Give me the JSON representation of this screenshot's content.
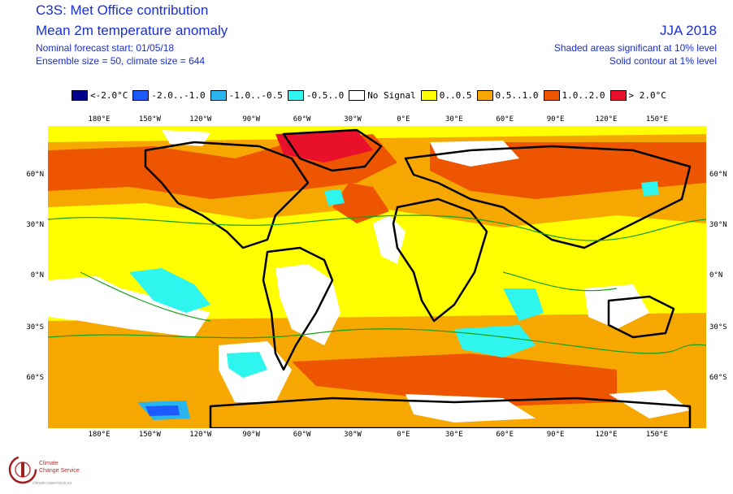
{
  "header": {
    "title": "C3S: Met Office contribution",
    "subtitle": "Mean 2m temperature anomaly",
    "forecast_start": "Nominal forecast start: 01/05/18",
    "ensemble": "Ensemble size = 50, climate size = 644",
    "season": "JJA 2018",
    "sig_note_1": "Shaded areas significant at 10% level",
    "sig_note_2": "Solid contour at 1% level"
  },
  "legend": [
    {
      "label": "<-2.0°C",
      "color": "#00008b"
    },
    {
      "label": "-2.0..-1.0",
      "color": "#1e5bff"
    },
    {
      "label": "-1.0..-0.5",
      "color": "#29b6ee"
    },
    {
      "label": "-0.5..0",
      "color": "#2ef5ee"
    },
    {
      "label": "No Signal",
      "color": "#ffffff"
    },
    {
      "label": "0..0.5",
      "color": "#ffff00"
    },
    {
      "label": "0.5..1.0",
      "color": "#f7a800"
    },
    {
      "label": "1.0..2.0",
      "color": "#ee5500"
    },
    {
      "label": "> 2.0°C",
      "color": "#e8102a"
    }
  ],
  "map": {
    "lon_labels": [
      "180°E",
      "150°W",
      "120°W",
      "90°W",
      "60°W",
      "30°W",
      "0°E",
      "30°E",
      "60°E",
      "90°E",
      "120°E",
      "150°E"
    ],
    "lat_labels": [
      "60°N",
      "30°N",
      "0°N",
      "30°S",
      "60°S"
    ]
  },
  "logo": {
    "name_line1": "Climate",
    "name_line2": "Change Service",
    "tagline": "climate.copernicus.eu"
  }
}
